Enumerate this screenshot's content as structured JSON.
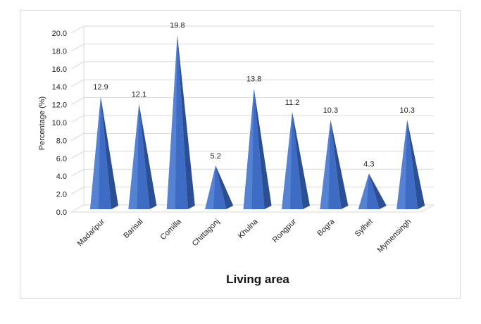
{
  "chart_data": {
    "type": "bar",
    "style": "3d-pyramid",
    "title": "",
    "xlabel": "Living area",
    "ylabel": "Percentage (%)",
    "ylim": [
      0,
      20
    ],
    "ytick_step": 2,
    "ytick_labels": [
      "0.0",
      "2.0",
      "4.0",
      "6.0",
      "8.0",
      "10.0",
      "12.0",
      "14.0",
      "16.0",
      "18.0",
      "20.0"
    ],
    "categories": [
      "Madaripur",
      "Barisal",
      "Comilla",
      "Chittagonj",
      "Khulna",
      "Rongpur",
      "Bogra",
      "Sylhet",
      "Mymensingh"
    ],
    "values": [
      12.9,
      12.1,
      19.8,
      5.2,
      13.8,
      11.2,
      10.3,
      4.3,
      10.3
    ],
    "value_labels": [
      "12.9",
      "12.1",
      "19.8",
      "5.2",
      "13.8",
      "11.2",
      "10.3",
      "4.3",
      "10.3"
    ],
    "grid": true,
    "legend": "none",
    "colors": {
      "bar_light": "#5b86d6",
      "bar_mid": "#3e6bc4",
      "bar_dark": "#2a4f95",
      "grid": "#d9d9d9"
    }
  }
}
